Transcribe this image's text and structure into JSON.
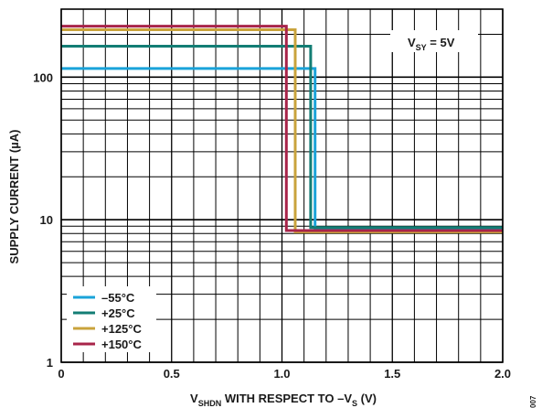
{
  "chart_data": {
    "type": "line",
    "xlabel": "V_SHDN WITH RESPECT TO –V_S (V)",
    "xlabel_parts": {
      "v_main": "V",
      "v_sub": "SHDN",
      "mid": " WITH RESPECT TO –V",
      "s_sub": "S",
      "tail": " (V)"
    },
    "ylabel": "SUPPLY CURRENT (µA)",
    "annotation": "V_SY = 5V",
    "annotation_parts": {
      "v_main": "V",
      "v_sub": "SY",
      "tail": " = 5V"
    },
    "figure_id": "007",
    "xlim": [
      0,
      2.0
    ],
    "ylim": [
      1,
      300
    ],
    "yscale": "log",
    "grid": true,
    "legend_position": "bottom-left",
    "x_ticks": [
      {
        "value": 0,
        "label": "0"
      },
      {
        "value": 0.5,
        "label": "0.5"
      },
      {
        "value": 1.0,
        "label": "1.0"
      },
      {
        "value": 1.5,
        "label": "1.5"
      },
      {
        "value": 2.0,
        "label": "2.0"
      }
    ],
    "y_ticks": [
      {
        "value": 1,
        "label": "1"
      },
      {
        "value": 10,
        "label": "10"
      },
      {
        "value": 100,
        "label": "100"
      }
    ],
    "series": [
      {
        "name": "–55°C",
        "color": "#1aa3d9",
        "x": [
          0,
          1.15,
          1.15,
          2.0
        ],
        "y": [
          115,
          115,
          8.5,
          8.5
        ]
      },
      {
        "name": "+25°C",
        "color": "#137d74",
        "x": [
          0,
          1.13,
          1.13,
          2.0
        ],
        "y": [
          165,
          165,
          8.8,
          8.8
        ]
      },
      {
        "name": "+125°C",
        "color": "#c9a33c",
        "x": [
          0,
          1.06,
          1.06,
          2.0
        ],
        "y": [
          215,
          215,
          8.2,
          8.2
        ]
      },
      {
        "name": "+150°C",
        "color": "#a8244a",
        "x": [
          0,
          1.02,
          1.02,
          2.0
        ],
        "y": [
          228,
          228,
          8.4,
          8.4
        ]
      }
    ]
  }
}
